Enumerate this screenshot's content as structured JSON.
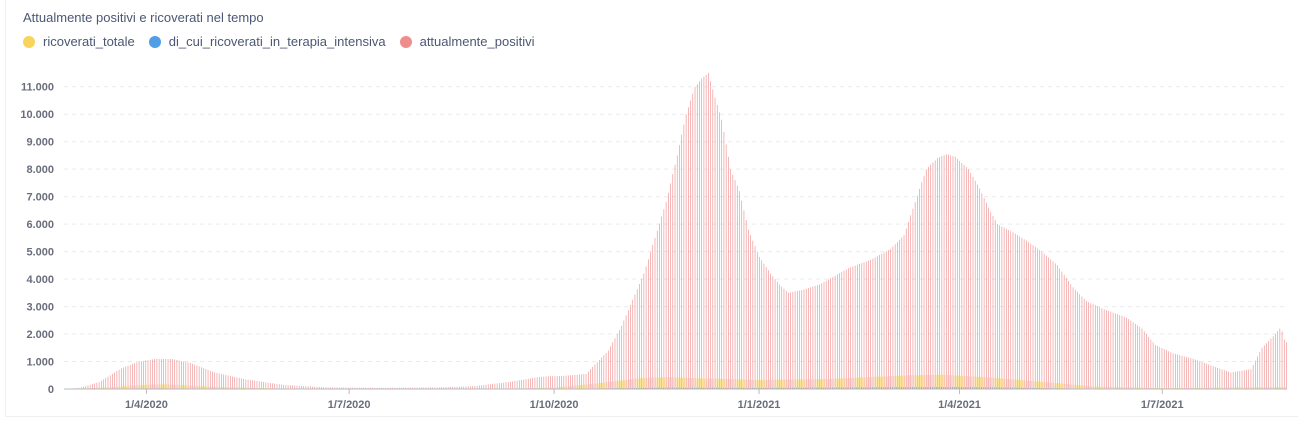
{
  "chart_data": {
    "type": "bar",
    "title": "Attualmente positivi e ricoverati nel tempo",
    "xlabel": "",
    "ylabel": "",
    "ylim": [
      0,
      11500
    ],
    "yticks": [
      0,
      1000,
      2000,
      3000,
      4000,
      5000,
      6000,
      7000,
      8000,
      9000,
      10000,
      11000
    ],
    "ytick_labels": [
      "0",
      "1.000",
      "2.000",
      "3.000",
      "4.000",
      "5.000",
      "6.000",
      "7.000",
      "8.000",
      "9.000",
      "10.000",
      "11.000"
    ],
    "xrange": [
      "2020-02-24",
      "2021-08-26"
    ],
    "xticks": [
      {
        "date": "2020-04-01",
        "label": "1/4/2020"
      },
      {
        "date": "2020-07-01",
        "label": "1/7/2020"
      },
      {
        "date": "2020-10-01",
        "label": "1/10/2020"
      },
      {
        "date": "2021-01-01",
        "label": "1/1/2021"
      },
      {
        "date": "2021-04-01",
        "label": "1/4/2021"
      },
      {
        "date": "2021-07-01",
        "label": "1/7/2021"
      }
    ],
    "grid": true,
    "legend_position": "top-left",
    "series": [
      {
        "name": "ricoverati_totale",
        "color": "#f9d45c",
        "points": [
          [
            "2020-02-24",
            2
          ],
          [
            "2020-03-15",
            60
          ],
          [
            "2020-04-01",
            160
          ],
          [
            "2020-04-10",
            170
          ],
          [
            "2020-05-01",
            80
          ],
          [
            "2020-06-01",
            15
          ],
          [
            "2020-08-01",
            5
          ],
          [
            "2020-09-15",
            20
          ],
          [
            "2020-10-01",
            50
          ],
          [
            "2020-10-20",
            200
          ],
          [
            "2020-11-10",
            400
          ],
          [
            "2020-11-20",
            430
          ],
          [
            "2020-12-10",
            380
          ],
          [
            "2021-01-01",
            330
          ],
          [
            "2021-02-01",
            360
          ],
          [
            "2021-03-10",
            500
          ],
          [
            "2021-03-25",
            520
          ],
          [
            "2021-04-15",
            420
          ],
          [
            "2021-05-10",
            250
          ],
          [
            "2021-06-01",
            90
          ],
          [
            "2021-07-01",
            30
          ],
          [
            "2021-08-10",
            60
          ],
          [
            "2021-08-26",
            70
          ]
        ]
      },
      {
        "name": "di_cui_ricoverati_in_terapia_intensiva",
        "color": "#509ee3",
        "points": [
          [
            "2020-02-24",
            0
          ],
          [
            "2020-03-25",
            20
          ],
          [
            "2020-04-05",
            25
          ],
          [
            "2020-05-01",
            10
          ],
          [
            "2020-06-01",
            2
          ],
          [
            "2020-09-15",
            3
          ],
          [
            "2020-10-20",
            20
          ],
          [
            "2020-11-20",
            50
          ],
          [
            "2021-01-01",
            40
          ],
          [
            "2021-03-25",
            70
          ],
          [
            "2021-04-15",
            60
          ],
          [
            "2021-06-01",
            10
          ],
          [
            "2021-07-15",
            3
          ],
          [
            "2021-08-26",
            10
          ]
        ]
      },
      {
        "name": "attualmente_positivi",
        "color": "#ef8c8c",
        "points": [
          [
            "2020-02-24",
            2
          ],
          [
            "2020-03-01",
            40
          ],
          [
            "2020-03-10",
            250
          ],
          [
            "2020-03-20",
            750
          ],
          [
            "2020-03-28",
            1000
          ],
          [
            "2020-04-05",
            1100
          ],
          [
            "2020-04-12",
            1090
          ],
          [
            "2020-04-20",
            950
          ],
          [
            "2020-05-01",
            600
          ],
          [
            "2020-05-15",
            350
          ],
          [
            "2020-06-01",
            150
          ],
          [
            "2020-06-20",
            60
          ],
          [
            "2020-07-15",
            40
          ],
          [
            "2020-08-10",
            60
          ],
          [
            "2020-08-25",
            100
          ],
          [
            "2020-09-10",
            250
          ],
          [
            "2020-09-25",
            450
          ],
          [
            "2020-10-05",
            480
          ],
          [
            "2020-10-15",
            550
          ],
          [
            "2020-10-25",
            1400
          ],
          [
            "2020-10-31",
            2300
          ],
          [
            "2020-11-10",
            4200
          ],
          [
            "2020-11-15",
            5500
          ],
          [
            "2020-11-20",
            6800
          ],
          [
            "2020-11-25",
            8500
          ],
          [
            "2020-11-29",
            10000
          ],
          [
            "2020-12-03",
            11000
          ],
          [
            "2020-12-06",
            11300
          ],
          [
            "2020-12-09",
            11500
          ],
          [
            "2020-12-12",
            10600
          ],
          [
            "2020-12-15",
            9800
          ],
          [
            "2020-12-19",
            8000
          ],
          [
            "2020-12-23",
            7200
          ],
          [
            "2020-12-27",
            5800
          ],
          [
            "2021-01-01",
            4800
          ],
          [
            "2021-01-06",
            4200
          ],
          [
            "2021-01-10",
            3800
          ],
          [
            "2021-01-14",
            3500
          ],
          [
            "2021-01-20",
            3600
          ],
          [
            "2021-01-28",
            3800
          ],
          [
            "2021-02-10",
            4400
          ],
          [
            "2021-02-20",
            4700
          ],
          [
            "2021-03-01",
            5100
          ],
          [
            "2021-03-07",
            5600
          ],
          [
            "2021-03-12",
            6800
          ],
          [
            "2021-03-17",
            8000
          ],
          [
            "2021-03-22",
            8400
          ],
          [
            "2021-03-26",
            8550
          ],
          [
            "2021-03-30",
            8450
          ],
          [
            "2021-04-05",
            8000
          ],
          [
            "2021-04-10",
            7300
          ],
          [
            "2021-04-14",
            6600
          ],
          [
            "2021-04-18",
            6000
          ],
          [
            "2021-04-25",
            5700
          ],
          [
            "2021-05-01",
            5400
          ],
          [
            "2021-05-08",
            5000
          ],
          [
            "2021-05-15",
            4500
          ],
          [
            "2021-05-22",
            3700
          ],
          [
            "2021-05-28",
            3200
          ],
          [
            "2021-06-05",
            2900
          ],
          [
            "2021-06-15",
            2600
          ],
          [
            "2021-06-22",
            2200
          ],
          [
            "2021-06-28",
            1600
          ],
          [
            "2021-07-06",
            1300
          ],
          [
            "2021-07-15",
            1100
          ],
          [
            "2021-07-25",
            800
          ],
          [
            "2021-08-01",
            600
          ],
          [
            "2021-08-10",
            720
          ],
          [
            "2021-08-15",
            1500
          ],
          [
            "2021-08-18",
            1750
          ],
          [
            "2021-08-21",
            2000
          ],
          [
            "2021-08-23",
            2200
          ],
          [
            "2021-08-24",
            2100
          ],
          [
            "2021-08-25",
            1800
          ],
          [
            "2021-08-26",
            1700
          ]
        ]
      }
    ]
  }
}
